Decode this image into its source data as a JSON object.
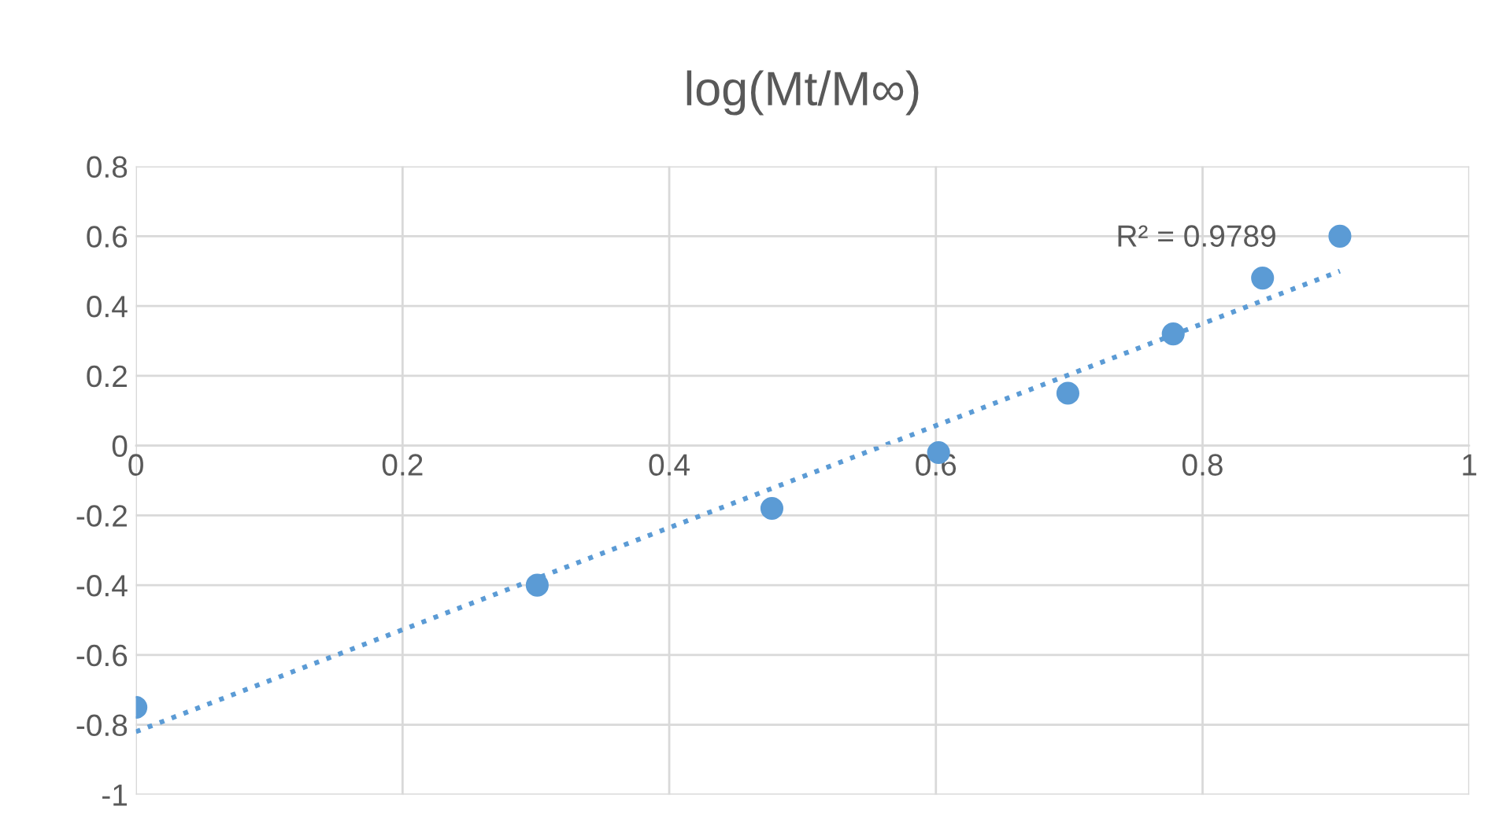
{
  "chart_data": {
    "type": "scatter",
    "title": "log(Mt/M∞)",
    "x": [
      0,
      0.301,
      0.477,
      0.602,
      0.699,
      0.778,
      0.845,
      0.903
    ],
    "series": [
      {
        "color": "#5b9bd5",
        "values": [
          -0.75,
          -0.4,
          -0.18,
          -0.02,
          0.15,
          0.32,
          0.48,
          0.6
        ],
        "marker": "circle"
      },
      {
        "type": "line",
        "x": [
          0,
          0.903
        ],
        "color": "#5b9bd5",
        "values": [
          -0.82,
          0.5
        ],
        "line_style": "dotted",
        "marker": "none"
      }
    ],
    "xlim": [
      0,
      1
    ],
    "xticks": [
      0,
      0.2,
      0.4,
      0.6,
      0.8,
      1
    ],
    "ylim": [
      -1,
      0.8
    ],
    "yticks": [
      -1,
      -0.8,
      -0.6,
      -0.4,
      -0.2,
      0,
      0.2,
      0.4,
      0.6,
      0.8
    ],
    "grid": true,
    "annotations": [
      "R² = 0.9789"
    ]
  }
}
